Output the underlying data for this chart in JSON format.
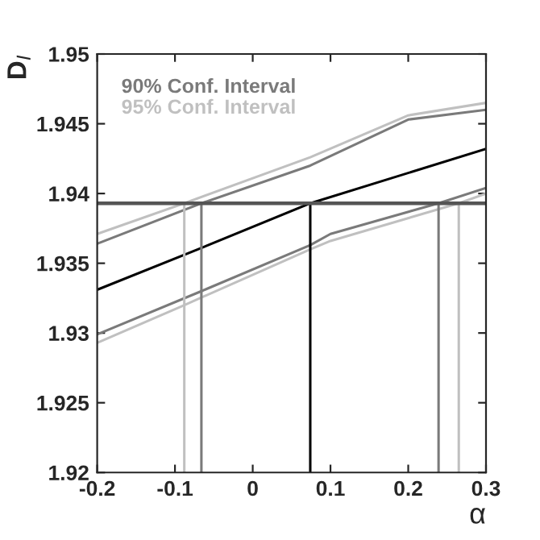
{
  "chart_data": {
    "type": "line",
    "xlabel": "α",
    "ylabel": "D$_{I}$",
    "xlim": [
      -0.2,
      0.3
    ],
    "ylim": [
      1.92,
      1.95
    ],
    "xticks": [
      -0.2,
      -0.1,
      0,
      0.1,
      0.2,
      0.3
    ],
    "yticks": [
      1.92,
      1.925,
      1.93,
      1.935,
      1.94,
      1.945,
      1.95
    ],
    "grid": false,
    "legend": "top left",
    "marker": "none",
    "line_style": "solid",
    "series": [
      {
        "color": "#000000",
        "x": [
          -0.2,
          -0.066,
          0.074,
          0.3
        ],
        "values": [
          1.9331,
          1.9361,
          1.9393,
          1.9432
        ]
      },
      {
        "name": "90% Conf. Interval",
        "color": "#7a7a7a",
        "x": [
          -0.2,
          -0.066,
          0.074,
          0.2,
          0.3
        ],
        "values": [
          1.9364,
          1.9393,
          1.942,
          1.9453,
          1.946
        ]
      },
      {
        "color": "#7a7a7a",
        "x": [
          -0.2,
          -0.066,
          0.074,
          0.1,
          0.239,
          0.3
        ],
        "values": [
          1.9299,
          1.933,
          1.9363,
          1.9371,
          1.9393,
          1.9404
        ]
      },
      {
        "name": "95% Conf. Interval",
        "color": "#c0c0c0",
        "x": [
          -0.2,
          -0.088,
          0.074,
          0.2,
          0.3
        ],
        "values": [
          1.9371,
          1.9393,
          1.9426,
          1.9456,
          1.9465
        ]
      },
      {
        "color": "#c0c0c0",
        "x": [
          -0.2,
          -0.088,
          0.074,
          0.1,
          0.265,
          0.3
        ],
        "values": [
          1.9293,
          1.932,
          1.936,
          1.9366,
          1.9393,
          1.94
        ]
      },
      {
        "color": "#000000",
        "x": [
          0.074,
          0.074
        ],
        "values": [
          1.92,
          1.9393
        ]
      },
      {
        "color": "#7a7a7a",
        "x": [
          -0.066,
          -0.066
        ],
        "values": [
          1.92,
          1.9393
        ]
      },
      {
        "color": "#7a7a7a",
        "x": [
          0.239,
          0.239
        ],
        "values": [
          1.92,
          1.9393
        ]
      },
      {
        "color": "#c0c0c0",
        "x": [
          -0.088,
          -0.088
        ],
        "values": [
          1.92,
          1.9393
        ]
      },
      {
        "color": "#c0c0c0",
        "x": [
          0.265,
          0.265
        ],
        "values": [
          1.92,
          1.9393
        ]
      }
    ],
    "ref_lines": [
      {
        "axis": "y",
        "value": 1.9393,
        "color": "#555555"
      }
    ]
  }
}
